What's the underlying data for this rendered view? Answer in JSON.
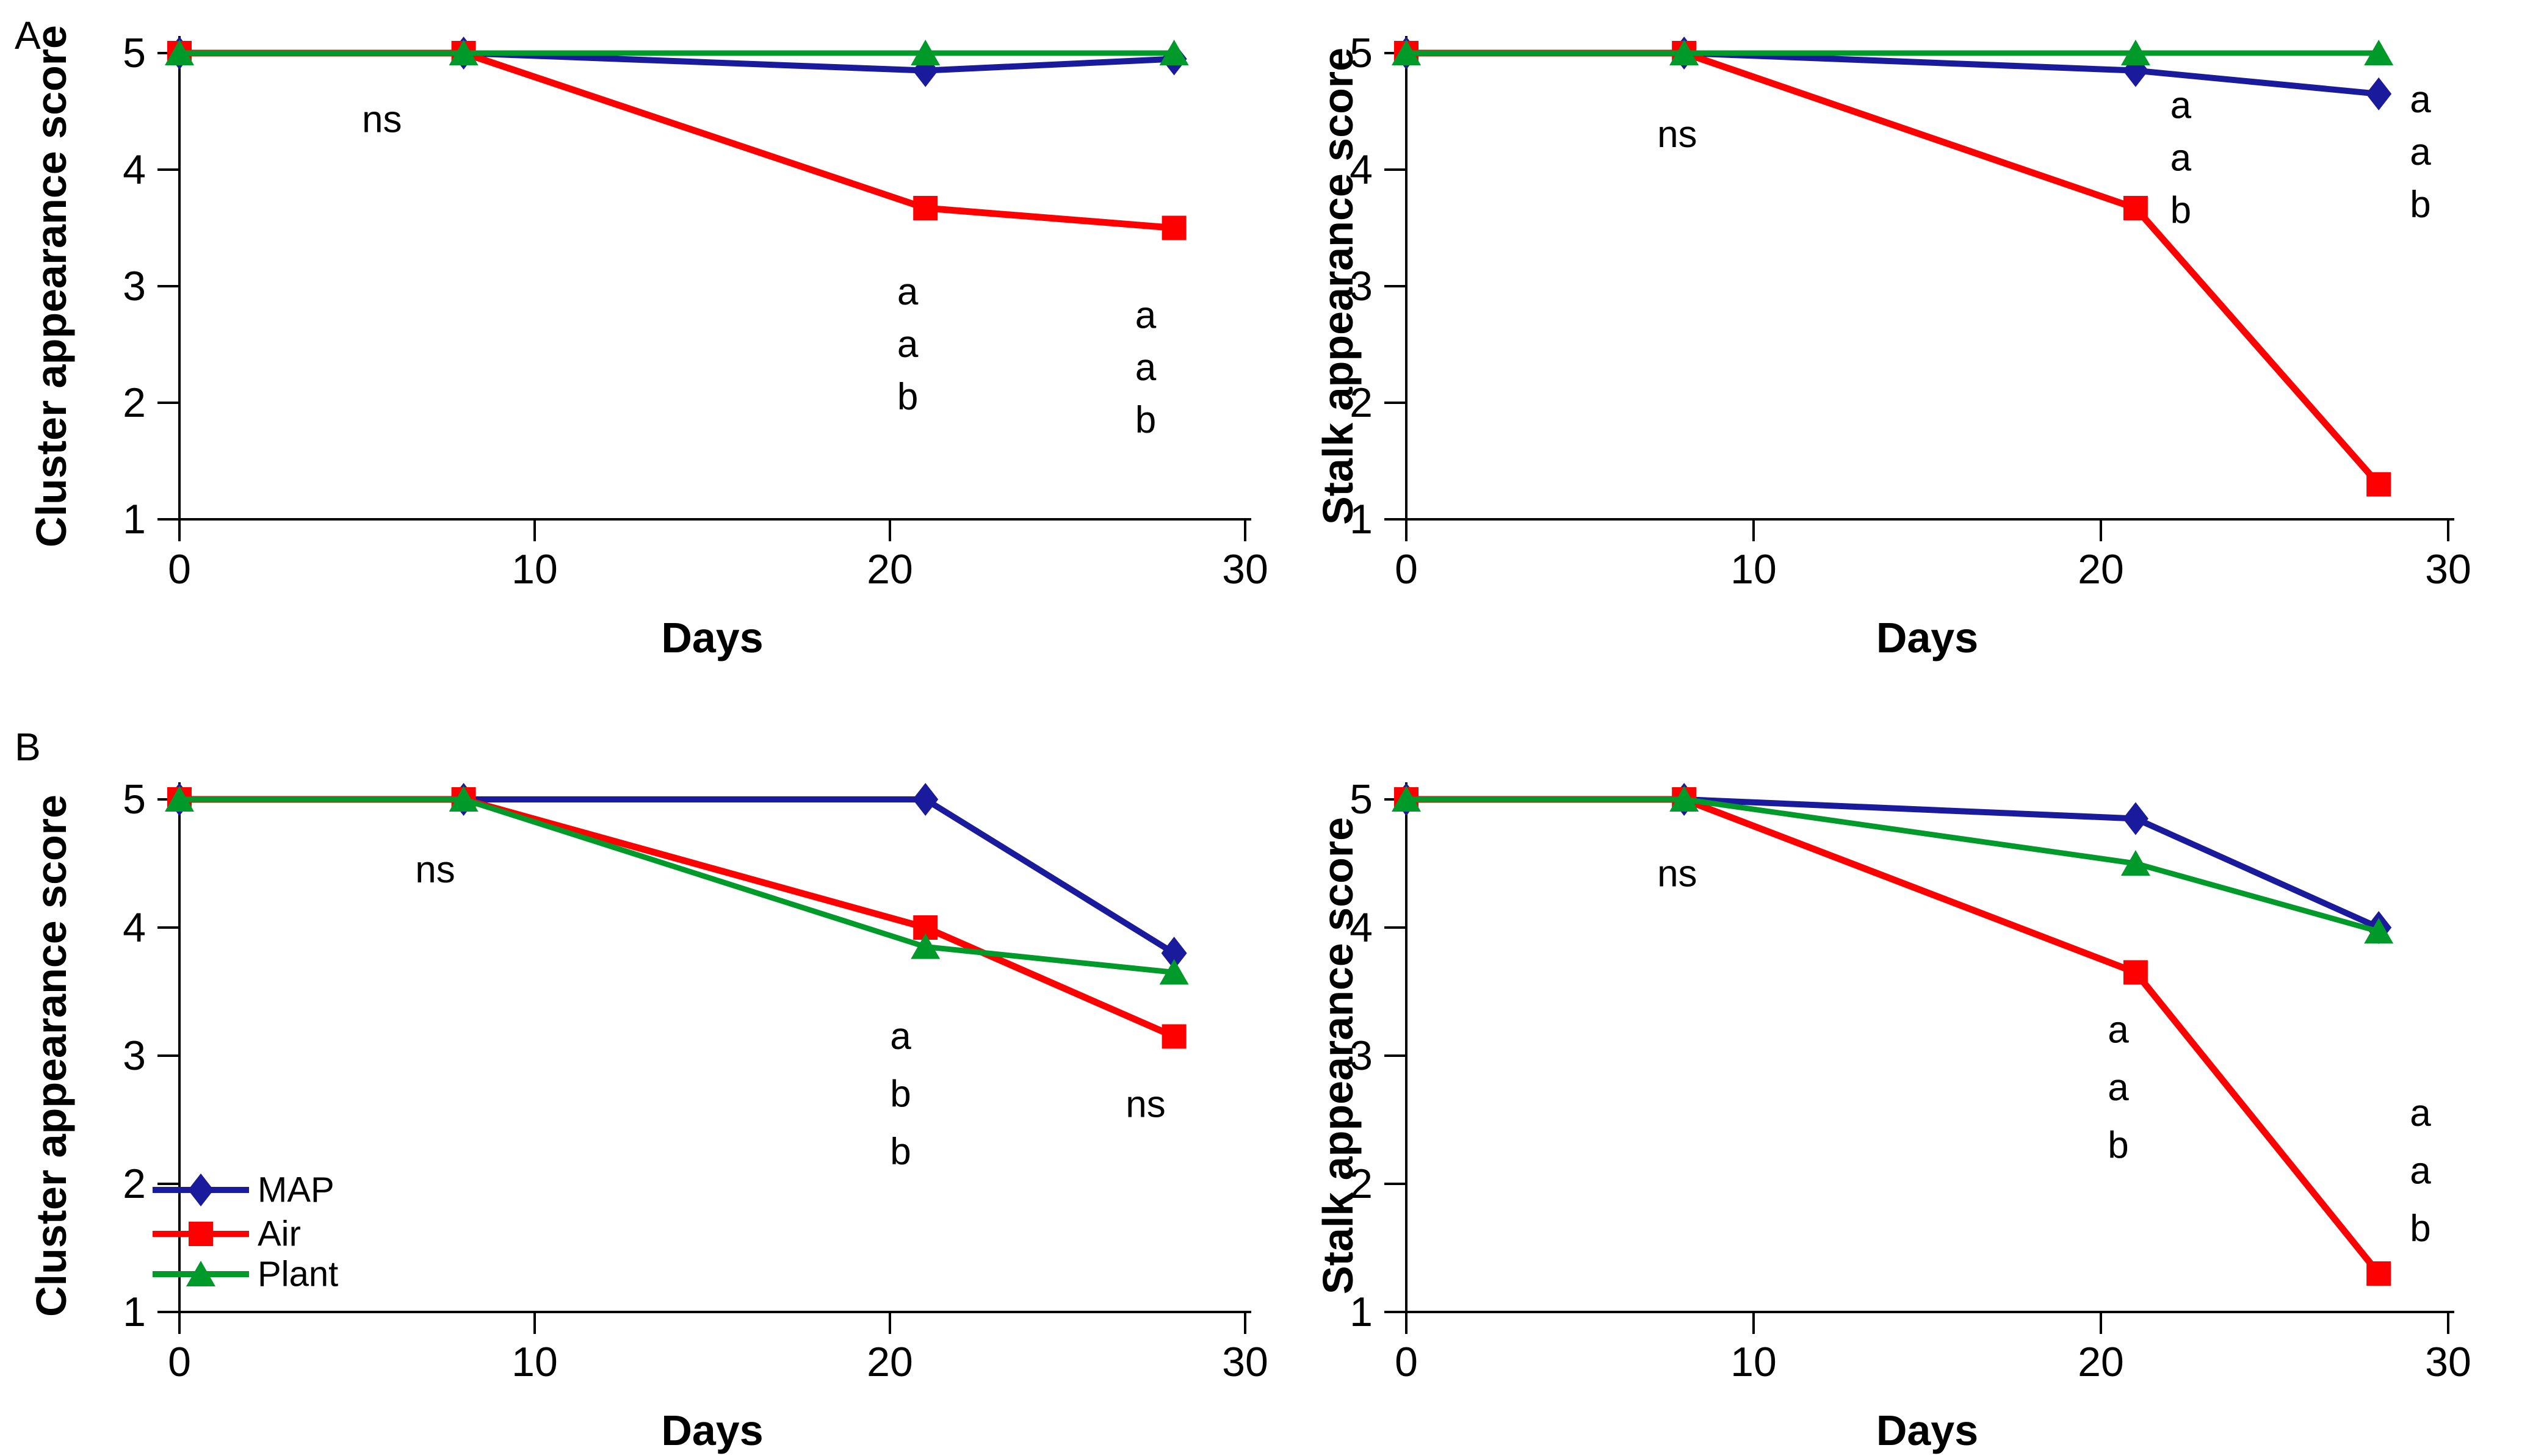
{
  "figure": {
    "panels": {
      "a": "A",
      "b": "B"
    },
    "colors": {
      "map_blue": "#1A1A9C",
      "air_red": "#FF0000",
      "plant_green": "#009A2A",
      "axis_black": "#000000",
      "background": "#FFFFFF"
    },
    "legend": {
      "items": [
        {
          "label": "MAP",
          "marker": "diamond",
          "color": "#1A1A9C"
        },
        {
          "label": "Air",
          "marker": "square",
          "color": "#FF0000"
        },
        {
          "label": "Plant",
          "marker": "triangle",
          "color": "#009A2A"
        }
      ]
    }
  },
  "chart_data": [
    {
      "key": "a_left",
      "panel": "A",
      "type": "line",
      "title": "",
      "xlabel": "Days",
      "ylabel": "Cluster appearance score",
      "xlim": [
        0,
        30
      ],
      "ylim": [
        1,
        5
      ],
      "x_ticks": [
        0,
        10,
        20,
        30
      ],
      "y_ticks": [
        1,
        2,
        3,
        4,
        5
      ],
      "grid": false,
      "legend_position": "none",
      "x": [
        0,
        8,
        21,
        28
      ],
      "series": [
        {
          "name": "MAP",
          "marker": "diamond",
          "color": "#1A1A9C",
          "values": [
            5,
            5,
            4.85,
            4.95
          ]
        },
        {
          "name": "Air",
          "marker": "square",
          "color": "#FF0000",
          "values": [
            5,
            5,
            3.67,
            3.5
          ]
        },
        {
          "name": "Plant",
          "marker": "triangle",
          "color": "#009A2A",
          "values": [
            5,
            5,
            5,
            5
          ]
        }
      ],
      "annotations": [
        {
          "text": "ns",
          "x": 5.7,
          "y": 4.43
        },
        {
          "text": "a",
          "x": 20.5,
          "y": 2.95
        },
        {
          "text": "a",
          "x": 20.5,
          "y": 2.5
        },
        {
          "text": "b",
          "x": 20.5,
          "y": 2.05
        },
        {
          "text": "a",
          "x": 27.2,
          "y": 2.75
        },
        {
          "text": "a",
          "x": 27.2,
          "y": 2.3
        },
        {
          "text": "b",
          "x": 27.2,
          "y": 1.85
        }
      ]
    },
    {
      "key": "a_right",
      "panel": "A",
      "type": "line",
      "title": "",
      "xlabel": "Days",
      "ylabel": "Stalk appearance score",
      "xlim": [
        0,
        30
      ],
      "ylim": [
        1,
        5
      ],
      "x_ticks": [
        0,
        10,
        20,
        30
      ],
      "y_ticks": [
        1,
        2,
        3,
        4,
        5
      ],
      "grid": false,
      "legend_position": "none",
      "x": [
        0,
        8,
        21,
        28
      ],
      "series": [
        {
          "name": "MAP",
          "marker": "diamond",
          "color": "#1A1A9C",
          "values": [
            5,
            5,
            4.85,
            4.65
          ]
        },
        {
          "name": "Air",
          "marker": "square",
          "color": "#FF0000",
          "values": [
            5,
            5,
            3.67,
            1.3
          ]
        },
        {
          "name": "Plant",
          "marker": "triangle",
          "color": "#009A2A",
          "values": [
            5,
            5,
            5,
            5
          ]
        }
      ],
      "annotations": [
        {
          "text": "ns",
          "x": 7.8,
          "y": 4.3
        },
        {
          "text": "a",
          "x": 22.3,
          "y": 4.55
        },
        {
          "text": "a",
          "x": 22.3,
          "y": 4.1
        },
        {
          "text": "b",
          "x": 22.3,
          "y": 3.65
        },
        {
          "text": "a",
          "x": 29.2,
          "y": 4.6
        },
        {
          "text": "a",
          "x": 29.2,
          "y": 4.15
        },
        {
          "text": "b",
          "x": 29.2,
          "y": 3.7
        }
      ]
    },
    {
      "key": "b_left",
      "panel": "B",
      "type": "line",
      "title": "",
      "xlabel": "Days",
      "ylabel": "Cluster appearance score",
      "xlim": [
        0,
        30
      ],
      "ylim": [
        1,
        5
      ],
      "x_ticks": [
        0,
        10,
        20,
        30
      ],
      "y_ticks": [
        1,
        2,
        3,
        4,
        5
      ],
      "grid": false,
      "legend_position": "inside-left",
      "x": [
        0,
        8,
        21,
        28
      ],
      "series": [
        {
          "name": "MAP",
          "marker": "diamond",
          "color": "#1A1A9C",
          "values": [
            5,
            5,
            5,
            3.8
          ]
        },
        {
          "name": "Air",
          "marker": "square",
          "color": "#FF0000",
          "values": [
            5,
            5,
            4.0,
            3.15
          ]
        },
        {
          "name": "Plant",
          "marker": "triangle",
          "color": "#009A2A",
          "values": [
            5,
            5,
            3.85,
            3.65
          ]
        }
      ],
      "annotations": [
        {
          "text": "ns",
          "x": 7.2,
          "y": 4.45
        },
        {
          "text": "a",
          "x": 20.3,
          "y": 3.15
        },
        {
          "text": "b",
          "x": 20.3,
          "y": 2.7
        },
        {
          "text": "b",
          "x": 20.3,
          "y": 2.25
        },
        {
          "text": "ns",
          "x": 27.2,
          "y": 2.62
        }
      ]
    },
    {
      "key": "b_right",
      "panel": "B",
      "type": "line",
      "title": "",
      "xlabel": "Days",
      "ylabel": "Stalk appearance score",
      "xlim": [
        0,
        30
      ],
      "ylim": [
        1,
        5
      ],
      "x_ticks": [
        0,
        10,
        20,
        30
      ],
      "y_ticks": [
        1,
        2,
        3,
        4,
        5
      ],
      "grid": false,
      "legend_position": "none",
      "x": [
        0,
        8,
        21,
        28
      ],
      "series": [
        {
          "name": "MAP",
          "marker": "diamond",
          "color": "#1A1A9C",
          "values": [
            5,
            5,
            4.85,
            4.0
          ]
        },
        {
          "name": "Air",
          "marker": "square",
          "color": "#FF0000",
          "values": [
            5,
            5,
            3.65,
            1.3
          ]
        },
        {
          "name": "Plant",
          "marker": "triangle",
          "color": "#009A2A",
          "values": [
            5,
            5,
            4.5,
            3.97
          ]
        }
      ],
      "annotations": [
        {
          "text": "ns",
          "x": 7.8,
          "y": 4.42
        },
        {
          "text": "a",
          "x": 20.5,
          "y": 3.2
        },
        {
          "text": "a",
          "x": 20.5,
          "y": 2.75
        },
        {
          "text": "b",
          "x": 20.5,
          "y": 2.3
        },
        {
          "text": "a",
          "x": 29.2,
          "y": 2.55
        },
        {
          "text": "a",
          "x": 29.2,
          "y": 2.1
        },
        {
          "text": "b",
          "x": 29.2,
          "y": 1.65
        }
      ]
    }
  ]
}
